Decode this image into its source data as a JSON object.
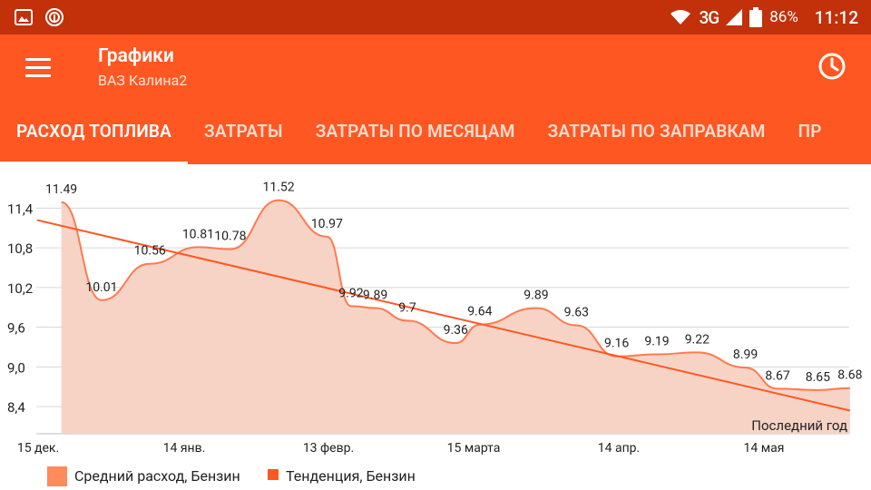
{
  "status_bar": {
    "network": "3G",
    "battery": "86%",
    "time": "11:12"
  },
  "app_bar": {
    "title": "Графики",
    "subtitle": "ВАЗ Калина2"
  },
  "tabs": [
    {
      "label": "РАСХОД ТОПЛИВА",
      "active": true
    },
    {
      "label": "ЗАТРАТЫ",
      "active": false
    },
    {
      "label": "ЗАТРАТЫ ПО МЕСЯЦАМ",
      "active": false
    },
    {
      "label": "ЗАТРАТЫ ПО ЗАПРАВКАМ",
      "active": false
    },
    {
      "label": "ПР",
      "active": false
    }
  ],
  "colors": {
    "accent": "#FF5722",
    "status_bar": "#C2310A",
    "area_fill": "#F7D3C5",
    "line": "#FF5722"
  },
  "chart_data": {
    "type": "area",
    "period_label": "Последний год",
    "x_ticks": [
      "15 дек.",
      "14 янв.",
      "13 февр.",
      "15 марта",
      "14 апр.",
      "14 мая"
    ],
    "y_ticks": [
      "11,4",
      "10,8",
      "10,2",
      "9,6",
      "9,0",
      "8,4"
    ],
    "y_tick_values": [
      11.4,
      10.8,
      10.2,
      9.6,
      9.0,
      8.4
    ],
    "ylim": [
      7.99,
      11.79
    ],
    "grid": true,
    "legend_position": "bottom-left",
    "series": [
      {
        "name": "Средний расход, Бензин",
        "kind": "area",
        "color": "#F7D3C5",
        "stroke": "#FF7A4F",
        "points": [
          {
            "x": 0.03,
            "y": 11.49,
            "label": "11.49"
          },
          {
            "x": 0.08,
            "y": 10.01,
            "label": "10.01"
          },
          {
            "x": 0.14,
            "y": 10.56,
            "label": "10.56"
          },
          {
            "x": 0.2,
            "y": 10.81,
            "label": "10.81"
          },
          {
            "x": 0.24,
            "y": 10.78,
            "label": "10.78"
          },
          {
            "x": 0.3,
            "y": 11.52,
            "label": "11.52"
          },
          {
            "x": 0.36,
            "y": 10.97,
            "label": "10.97"
          },
          {
            "x": 0.39,
            "y": 9.92,
            "label": "9.92"
          },
          {
            "x": 0.42,
            "y": 9.89,
            "label": "9.89"
          },
          {
            "x": 0.46,
            "y": 9.7,
            "label": "9.7"
          },
          {
            "x": 0.52,
            "y": 9.36,
            "label": "9.36"
          },
          {
            "x": 0.55,
            "y": 9.64,
            "label": "9.64"
          },
          {
            "x": 0.62,
            "y": 9.89,
            "label": "9.89"
          },
          {
            "x": 0.67,
            "y": 9.63,
            "label": "9.63"
          },
          {
            "x": 0.72,
            "y": 9.16,
            "label": "9.16"
          },
          {
            "x": 0.77,
            "y": 9.19,
            "label": "9.19"
          },
          {
            "x": 0.82,
            "y": 9.22,
            "label": "9.22"
          },
          {
            "x": 0.88,
            "y": 8.99,
            "label": "8.99"
          },
          {
            "x": 0.92,
            "y": 8.67,
            "label": "8.67"
          },
          {
            "x": 0.97,
            "y": 8.65,
            "label": "8.65"
          },
          {
            "x": 1.01,
            "y": 8.68,
            "label": "8.68"
          }
        ]
      },
      {
        "name": "Тенденция, Бензин",
        "kind": "trend",
        "color": "#FF5722",
        "start": {
          "x": 0.0,
          "y": 11.22
        },
        "end": {
          "x": 1.01,
          "y": 8.34
        }
      }
    ]
  }
}
